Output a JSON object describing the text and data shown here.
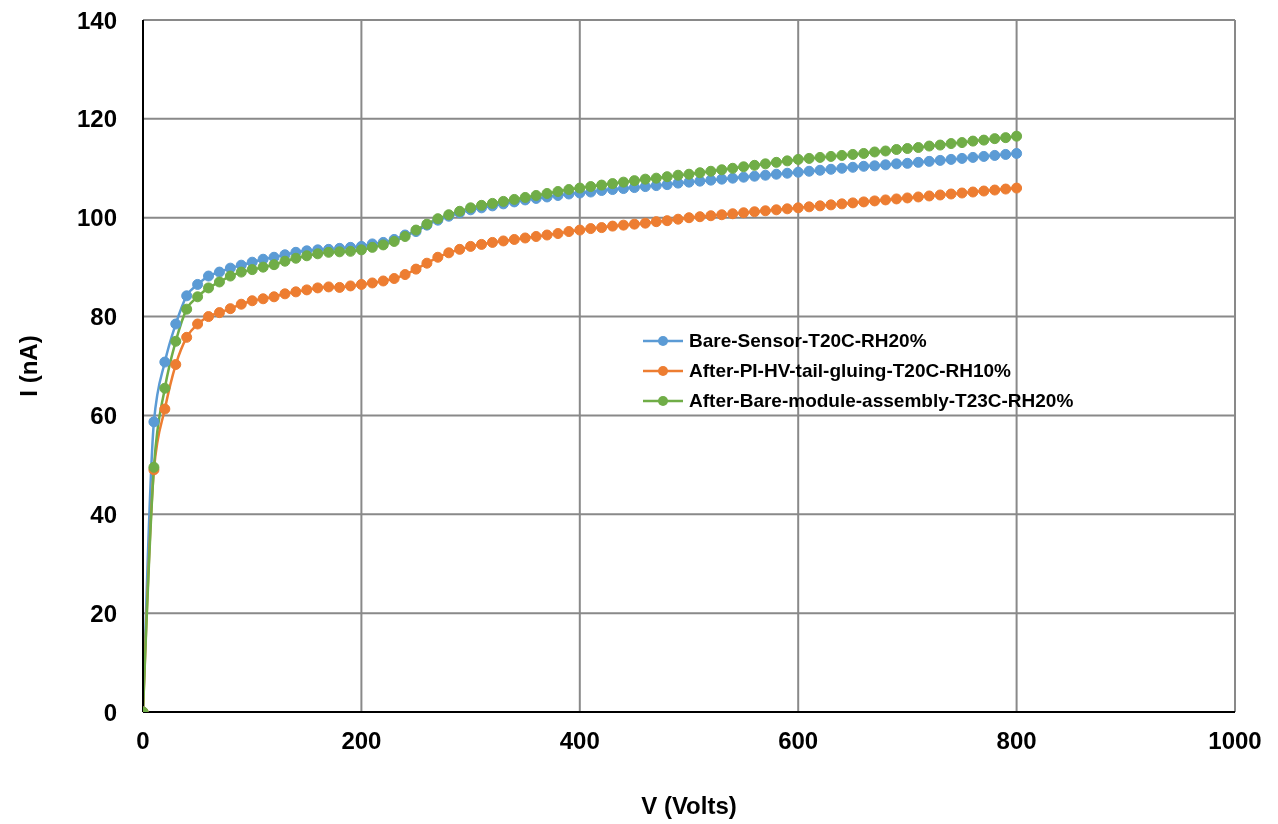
{
  "chart_data": {
    "type": "line",
    "xlabel": "V (Volts)",
    "ylabel": "I (nA)",
    "x": [
      0,
      10,
      20,
      30,
      40,
      50,
      60,
      70,
      80,
      90,
      100,
      110,
      120,
      130,
      140,
      150,
      160,
      170,
      180,
      190,
      200,
      210,
      220,
      230,
      240,
      250,
      260,
      270,
      280,
      290,
      300,
      310,
      320,
      330,
      340,
      350,
      360,
      370,
      380,
      390,
      400,
      410,
      420,
      430,
      440,
      450,
      460,
      470,
      480,
      490,
      500,
      510,
      520,
      530,
      540,
      550,
      560,
      570,
      580,
      590,
      600,
      610,
      620,
      630,
      640,
      650,
      660,
      670,
      680,
      690,
      700,
      710,
      720,
      730,
      740,
      750,
      760,
      770,
      780,
      790,
      800
    ],
    "series": [
      {
        "name": "Bare-Sensor-T20C-RH20%",
        "color": "#5b9bd5",
        "values": [
          0,
          58.7,
          70.8,
          78.5,
          84.2,
          86.5,
          88.2,
          89.0,
          89.8,
          90.4,
          91.0,
          91.6,
          92.0,
          92.5,
          93.0,
          93.3,
          93.5,
          93.6,
          93.8,
          94.0,
          94.2,
          94.7,
          95.0,
          95.6,
          96.5,
          97.2,
          98.5,
          99.5,
          100.3,
          101.0,
          101.6,
          102.0,
          102.4,
          102.8,
          103.2,
          103.6,
          103.9,
          104.2,
          104.5,
          104.8,
          105.0,
          105.2,
          105.5,
          105.7,
          105.9,
          106.1,
          106.3,
          106.5,
          106.7,
          107.0,
          107.2,
          107.4,
          107.6,
          107.8,
          108.0,
          108.2,
          108.4,
          108.6,
          108.8,
          109.0,
          109.2,
          109.4,
          109.6,
          109.8,
          110.0,
          110.2,
          110.4,
          110.5,
          110.7,
          110.9,
          111.0,
          111.2,
          111.4,
          111.6,
          111.8,
          112.0,
          112.2,
          112.4,
          112.6,
          112.8,
          113.0
        ]
      },
      {
        "name": "After-PI-HV-tail-gluing-T20C-RH10%",
        "color": "#ed7d31",
        "values": [
          0,
          49.0,
          61.3,
          70.3,
          75.8,
          78.5,
          80.0,
          80.8,
          81.6,
          82.5,
          83.2,
          83.6,
          84.0,
          84.6,
          85.0,
          85.4,
          85.8,
          86.0,
          85.9,
          86.2,
          86.5,
          86.8,
          87.2,
          87.7,
          88.5,
          89.6,
          90.8,
          92.0,
          92.9,
          93.6,
          94.2,
          94.6,
          95.0,
          95.3,
          95.6,
          95.9,
          96.2,
          96.5,
          96.8,
          97.2,
          97.5,
          97.8,
          98.0,
          98.3,
          98.5,
          98.7,
          98.9,
          99.2,
          99.4,
          99.7,
          100.0,
          100.2,
          100.4,
          100.6,
          100.8,
          101.0,
          101.2,
          101.4,
          101.6,
          101.8,
          102.0,
          102.2,
          102.4,
          102.6,
          102.8,
          103.0,
          103.2,
          103.4,
          103.6,
          103.8,
          104.0,
          104.2,
          104.4,
          104.6,
          104.8,
          105.0,
          105.2,
          105.4,
          105.6,
          105.8,
          106.0
        ]
      },
      {
        "name": "After-Bare-module-assembly-T23C-RH20%",
        "color": "#70ad47",
        "values": [
          0,
          49.5,
          65.5,
          75.0,
          81.5,
          84.0,
          85.8,
          87.0,
          88.2,
          89.0,
          89.5,
          90.0,
          90.5,
          91.2,
          91.8,
          92.3,
          92.7,
          93.0,
          93.1,
          93.2,
          93.5,
          94.0,
          94.5,
          95.2,
          96.2,
          97.5,
          98.7,
          99.8,
          100.6,
          101.3,
          102.0,
          102.5,
          102.9,
          103.3,
          103.7,
          104.1,
          104.5,
          104.9,
          105.3,
          105.7,
          106.0,
          106.3,
          106.6,
          106.9,
          107.2,
          107.5,
          107.8,
          108.0,
          108.3,
          108.6,
          108.8,
          109.1,
          109.4,
          109.7,
          110.0,
          110.3,
          110.6,
          110.9,
          111.2,
          111.5,
          111.8,
          112.0,
          112.2,
          112.4,
          112.6,
          112.8,
          113.0,
          113.3,
          113.5,
          113.8,
          114.0,
          114.2,
          114.5,
          114.7,
          115.0,
          115.2,
          115.5,
          115.7,
          116.0,
          116.2,
          116.5
        ]
      }
    ],
    "xlim": [
      0,
      1000
    ],
    "xticks": [
      0,
      200,
      400,
      600,
      800,
      1000
    ],
    "ylim": [
      0,
      140
    ],
    "yticks": [
      0,
      20,
      40,
      60,
      80,
      100,
      120,
      140
    ],
    "grid": true,
    "legend": "right",
    "marker": "circle",
    "line_style": "solid"
  }
}
